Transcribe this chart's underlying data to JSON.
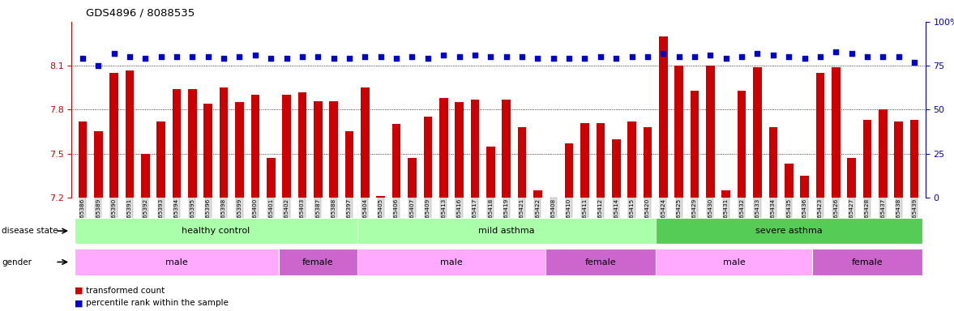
{
  "title": "GDS4896 / 8088535",
  "samples": [
    "GSM665386",
    "GSM665389",
    "GSM665390",
    "GSM665391",
    "GSM665392",
    "GSM665393",
    "GSM665394",
    "GSM665395",
    "GSM665396",
    "GSM665398",
    "GSM665399",
    "GSM665400",
    "GSM665401",
    "GSM665402",
    "GSM665403",
    "GSM665387",
    "GSM665388",
    "GSM665397",
    "GSM665404",
    "GSM665405",
    "GSM665406",
    "GSM665407",
    "GSM665409",
    "GSM665413",
    "GSM665416",
    "GSM665417",
    "GSM665418",
    "GSM665419",
    "GSM665421",
    "GSM665422",
    "GSM665408",
    "GSM665410",
    "GSM665411",
    "GSM665412",
    "GSM665414",
    "GSM665415",
    "GSM665420",
    "GSM665424",
    "GSM665425",
    "GSM665429",
    "GSM665430",
    "GSM665431",
    "GSM665432",
    "GSM665433",
    "GSM665434",
    "GSM665435",
    "GSM665436",
    "GSM665423",
    "GSM665426",
    "GSM665427",
    "GSM665428",
    "GSM665437",
    "GSM665438",
    "GSM665439"
  ],
  "bar_values": [
    7.72,
    7.65,
    8.05,
    8.07,
    7.5,
    7.72,
    7.94,
    7.94,
    7.84,
    7.95,
    7.85,
    7.9,
    7.47,
    7.9,
    7.92,
    7.86,
    7.86,
    7.65,
    7.95,
    7.21,
    7.7,
    7.47,
    7.75,
    7.88,
    7.85,
    7.87,
    7.55,
    7.87,
    7.68,
    7.25,
    7.2,
    7.57,
    7.71,
    7.71,
    7.6,
    7.72,
    7.68,
    8.3,
    8.1,
    7.93,
    8.1,
    7.25,
    7.93,
    8.09,
    7.68,
    7.43,
    7.35,
    8.05,
    8.09,
    7.47,
    7.73,
    7.8,
    7.72,
    7.73
  ],
  "dot_values": [
    79,
    75,
    82,
    80,
    79,
    80,
    80,
    80,
    80,
    79,
    80,
    81,
    79,
    79,
    80,
    80,
    79,
    79,
    80,
    80,
    79,
    80,
    79,
    81,
    80,
    81,
    80,
    80,
    80,
    79,
    79,
    79,
    79,
    80,
    79,
    80,
    80,
    82,
    80,
    80,
    81,
    79,
    80,
    82,
    81,
    80,
    79,
    80,
    83,
    82,
    80,
    80,
    80,
    77
  ],
  "ylim": [
    7.2,
    8.4
  ],
  "yticks": [
    7.2,
    7.5,
    7.8,
    8.1
  ],
  "y2lim": [
    0,
    100
  ],
  "y2ticks": [
    0,
    25,
    50,
    75,
    100
  ],
  "y2ticklabels": [
    "0",
    "25",
    "50",
    "75",
    "100%"
  ],
  "bar_color": "#cc0000",
  "dot_color": "#0000cc",
  "bg_color": "#ffffff",
  "disease_state_groups": [
    {
      "label": "healthy control",
      "start": 0,
      "end": 18,
      "color": "#aaffaa"
    },
    {
      "label": "mild asthma",
      "start": 18,
      "end": 37,
      "color": "#aaffaa"
    },
    {
      "label": "severe asthma",
      "start": 37,
      "end": 54,
      "color": "#55cc55"
    }
  ],
  "gender_groups": [
    {
      "label": "male",
      "start": 0,
      "end": 13,
      "color": "#ffaaff"
    },
    {
      "label": "female",
      "start": 13,
      "end": 18,
      "color": "#cc66cc"
    },
    {
      "label": "male",
      "start": 18,
      "end": 30,
      "color": "#ffaaff"
    },
    {
      "label": "female",
      "start": 30,
      "end": 37,
      "color": "#cc66cc"
    },
    {
      "label": "male",
      "start": 37,
      "end": 47,
      "color": "#ffaaff"
    },
    {
      "label": "female",
      "start": 47,
      "end": 54,
      "color": "#cc66cc"
    }
  ]
}
